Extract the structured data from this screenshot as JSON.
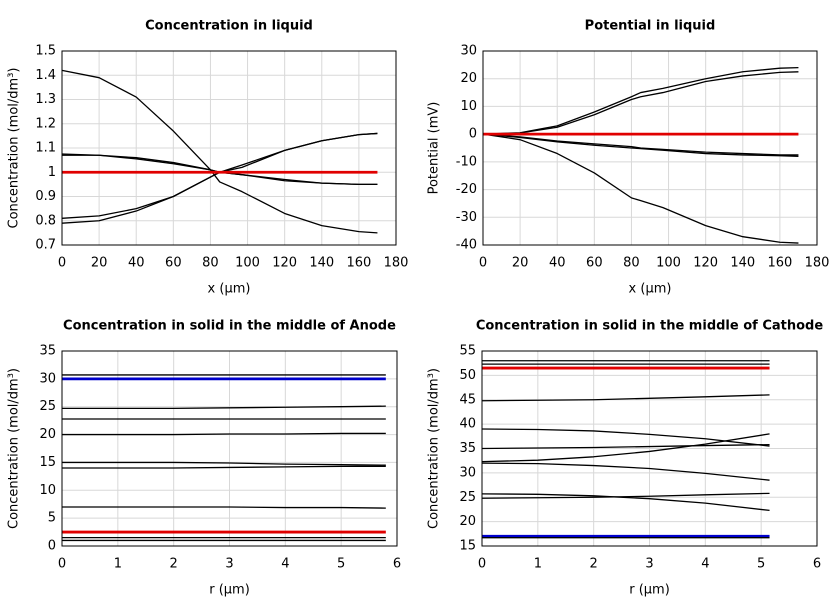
{
  "chart_data": [
    {
      "type": "line",
      "title": "Concentration in liquid",
      "xlabel": "x (µm)",
      "ylabel": "Concentration (mol/dm³)",
      "x": [
        0,
        20,
        40,
        60,
        80,
        85,
        97,
        120,
        140,
        160,
        170
      ],
      "series": [
        {
          "color": "#000000",
          "values": [
            1.42,
            1.39,
            1.31,
            1.17,
            1.01,
            0.96,
            0.92,
            0.83,
            0.78,
            0.755,
            0.75
          ]
        },
        {
          "color": "#000000",
          "values": [
            1.07,
            1.07,
            1.06,
            1.04,
            1.01,
            1.0,
            0.99,
            0.97,
            0.955,
            0.95,
            0.95
          ]
        },
        {
          "color": "#000000",
          "values": [
            1.075,
            1.07,
            1.055,
            1.035,
            1.01,
            1.0,
            0.99,
            0.965,
            0.955,
            0.95,
            0.95
          ]
        },
        {
          "color": "#000000",
          "values": [
            0.81,
            0.82,
            0.85,
            0.9,
            0.98,
            1.0,
            1.03,
            1.09,
            1.13,
            1.155,
            1.16
          ]
        },
        {
          "color": "#000000",
          "values": [
            0.79,
            0.8,
            0.84,
            0.9,
            0.98,
            1.0,
            1.02,
            1.09,
            1.13,
            1.155,
            1.16
          ]
        },
        {
          "color": "#e00000",
          "values": [
            1.0,
            1.0,
            1.0,
            1.0,
            1.0,
            1.0,
            1.0,
            1.0,
            1.0,
            1.0,
            1.0
          ]
        }
      ],
      "xlim": [
        0,
        180
      ],
      "xticks": [
        0,
        20,
        40,
        60,
        80,
        100,
        120,
        140,
        160,
        180
      ],
      "ylim": [
        0.7,
        1.5
      ],
      "yticks": [
        0.7,
        0.8,
        0.9,
        1,
        1.1,
        1.2,
        1.3,
        1.4,
        1.5
      ],
      "grid": true
    },
    {
      "type": "line",
      "title": "Potential in liquid",
      "xlabel": "x (µm)",
      "ylabel": "Potential (mV)",
      "x": [
        0,
        20,
        40,
        60,
        80,
        85,
        97,
        120,
        140,
        160,
        170
      ],
      "series": [
        {
          "color": "#000000",
          "values": [
            0,
            0.5,
            3,
            8,
            13.5,
            15,
            16.5,
            20,
            22.5,
            23.8,
            24
          ]
        },
        {
          "color": "#000000",
          "values": [
            0,
            0.4,
            2.5,
            7,
            12.5,
            13.5,
            15,
            19,
            21,
            22.3,
            22.5
          ]
        },
        {
          "color": "#000000",
          "values": [
            0,
            -1,
            -2.5,
            -3.5,
            -4.5,
            -5,
            -5.5,
            -6.5,
            -7,
            -7.5,
            -7.5
          ]
        },
        {
          "color": "#000000",
          "values": [
            0,
            -1.2,
            -2.8,
            -4,
            -5,
            -5.2,
            -5.8,
            -7,
            -7.5,
            -7.8,
            -8
          ]
        },
        {
          "color": "#000000",
          "values": [
            0,
            -2,
            -7,
            -14,
            -23,
            -24,
            -26.5,
            -33,
            -37,
            -39,
            -39.3
          ]
        },
        {
          "color": "#e00000",
          "values": [
            0,
            0,
            0,
            0,
            0,
            0,
            0,
            0,
            0,
            0,
            0
          ]
        }
      ],
      "xlim": [
        0,
        180
      ],
      "xticks": [
        0,
        20,
        40,
        60,
        80,
        100,
        120,
        140,
        160,
        180
      ],
      "ylim": [
        -40,
        30
      ],
      "yticks": [
        -40,
        -30,
        -20,
        -10,
        0,
        10,
        20,
        30
      ],
      "grid": true
    },
    {
      "type": "line",
      "title": "Concentration in solid in the middle of Anode",
      "xlabel": "r (µm)",
      "ylabel": "Concentration (mol/dm³)",
      "x": [
        0,
        1,
        2,
        3,
        4,
        5,
        5.8
      ],
      "series": [
        {
          "color": "#000000",
          "values": [
            30.7,
            30.7,
            30.7,
            30.7,
            30.7,
            30.7,
            30.7
          ]
        },
        {
          "color": "#0000cc",
          "values": [
            30,
            30,
            30,
            30,
            30,
            30,
            30
          ]
        },
        {
          "color": "#000000",
          "values": [
            24.7,
            24.7,
            24.7,
            24.8,
            24.9,
            25,
            25.1
          ]
        },
        {
          "color": "#000000",
          "values": [
            22.8,
            22.8,
            22.8,
            22.8,
            22.8,
            22.8,
            22.8
          ]
        },
        {
          "color": "#000000",
          "values": [
            20,
            20,
            20,
            20.1,
            20.1,
            20.2,
            20.2
          ]
        },
        {
          "color": "#000000",
          "values": [
            15,
            15,
            15,
            14.9,
            14.7,
            14.6,
            14.5
          ]
        },
        {
          "color": "#000000",
          "values": [
            14,
            14,
            14,
            14.1,
            14.2,
            14.3,
            14.3
          ]
        },
        {
          "color": "#000000",
          "values": [
            7,
            7,
            7,
            7,
            6.9,
            6.9,
            6.8
          ]
        },
        {
          "color": "#e00000",
          "values": [
            2.5,
            2.5,
            2.5,
            2.5,
            2.5,
            2.5,
            2.5
          ]
        },
        {
          "color": "#000000",
          "values": [
            1.5,
            1.5,
            1.5,
            1.5,
            1.5,
            1.5,
            1.5
          ]
        },
        {
          "color": "#000000",
          "values": [
            1,
            1,
            1,
            1,
            1,
            1,
            1
          ]
        }
      ],
      "xlim": [
        0,
        6
      ],
      "xticks": [
        0,
        1,
        2,
        3,
        4,
        5,
        6
      ],
      "ylim": [
        0,
        35
      ],
      "yticks": [
        0,
        5,
        10,
        15,
        20,
        25,
        30,
        35
      ],
      "grid": true
    },
    {
      "type": "line",
      "title": "Concentration in solid in the middle of Cathode",
      "xlabel": "r (µm)",
      "ylabel": "Concentration (mol/dm³)",
      "x": [
        0,
        1,
        2,
        3,
        4,
        5.15
      ],
      "series": [
        {
          "color": "#000000",
          "values": [
            53,
            53,
            53,
            53,
            53,
            53
          ]
        },
        {
          "color": "#000000",
          "values": [
            52.3,
            52.3,
            52.3,
            52.3,
            52.3,
            52.3
          ]
        },
        {
          "color": "#e00000",
          "values": [
            51.5,
            51.5,
            51.5,
            51.5,
            51.5,
            51.5
          ]
        },
        {
          "color": "#000000",
          "values": [
            44.8,
            44.9,
            45,
            45.3,
            45.6,
            46
          ]
        },
        {
          "color": "#000000",
          "values": [
            39,
            38.9,
            38.6,
            37.9,
            37,
            35.5
          ]
        },
        {
          "color": "#000000",
          "values": [
            35,
            35.1,
            35.2,
            35.4,
            35.6,
            35.8
          ]
        },
        {
          "color": "#000000",
          "values": [
            32.3,
            32.6,
            33.3,
            34.4,
            35.9,
            38
          ]
        },
        {
          "color": "#000000",
          "values": [
            32,
            31.9,
            31.5,
            30.9,
            29.9,
            28.5
          ]
        },
        {
          "color": "#000000",
          "values": [
            25.7,
            25.6,
            25.3,
            24.7,
            23.8,
            22.3
          ]
        },
        {
          "color": "#000000",
          "values": [
            24.8,
            24.9,
            25,
            25.2,
            25.5,
            25.8
          ]
        },
        {
          "color": "#0000cc",
          "values": [
            17,
            17,
            17,
            17,
            17,
            17
          ]
        },
        {
          "color": "#000000",
          "values": [
            16.7,
            16.7,
            16.7,
            16.7,
            16.7,
            16.7
          ]
        }
      ],
      "xlim": [
        0,
        6
      ],
      "xticks": [
        0,
        1,
        2,
        3,
        4,
        5,
        6
      ],
      "ylim": [
        15,
        55
      ],
      "yticks": [
        15,
        20,
        25,
        30,
        35,
        40,
        45,
        50,
        55
      ],
      "grid": true
    }
  ]
}
